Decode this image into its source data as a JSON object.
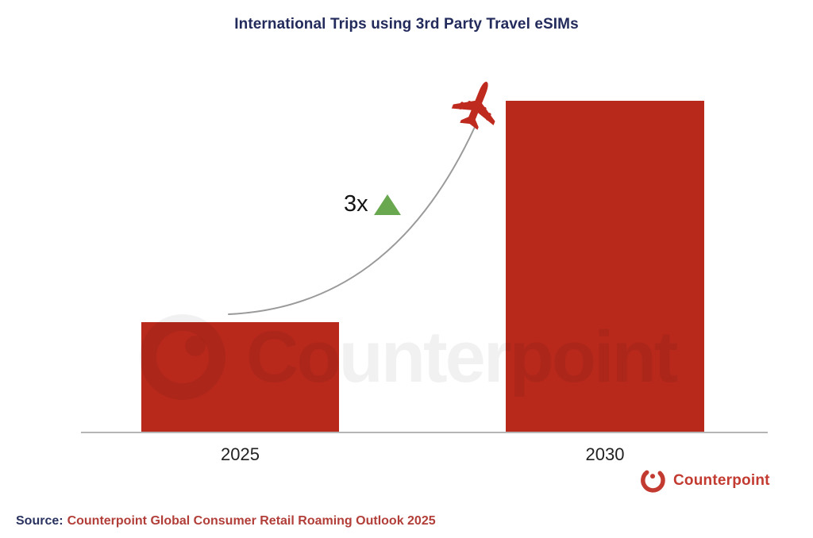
{
  "chart_data": {
    "type": "bar",
    "title": "International Trips using 3rd Party Travel eSIMs",
    "categories": [
      "2025",
      "2030"
    ],
    "values": [
      1,
      3
    ],
    "value_labels_shown": false,
    "xlabel": "",
    "ylabel": "",
    "ylim": [
      0,
      3.1
    ],
    "grid": false,
    "legend": false,
    "bar_color": "#b8291c",
    "annotation": {
      "label": "3x",
      "symbol": "up-triangle",
      "triangle_color": "#6aa84f",
      "meaning": "3x growth from 2025 to 2030"
    },
    "decoration": {
      "curve": "gray exponential growth curve from top of 2025 bar to airplane at top of 2030 bar",
      "airplane_color": "#bf2a1f"
    }
  },
  "title": "International Trips using 3rd Party Travel eSIMs",
  "watermark": {
    "text": "Counterpoint"
  },
  "brand": {
    "name": "Counterpoint",
    "color": "#c23a30"
  },
  "source": {
    "prefix": "Source:",
    "text": "Counterpoint Global Consumer Retail Roaming Outlook 2025"
  },
  "colors": {
    "title_navy": "#232b5c",
    "bar_red": "#b8291c",
    "curve_gray": "#9a9a9a",
    "triangle_green": "#6aa84f",
    "source_red": "#b23e39",
    "axis_gray": "#b5b5b5"
  }
}
